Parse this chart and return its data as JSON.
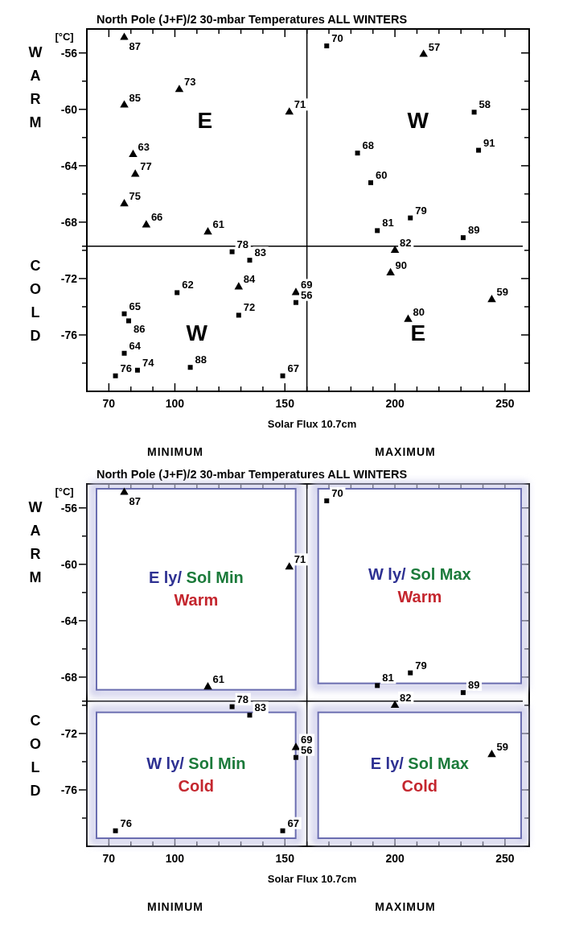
{
  "chart_data": [
    {
      "type": "scatter",
      "title": "North Pole (J+F)/2 30-mbar Temperatures ALL WINTERS",
      "xlabel": "Solar Flux 10.7cm",
      "ylabel": "[°C]",
      "xlim": [
        60,
        261
      ],
      "ylim": [
        -80,
        -54.3
      ],
      "xticks": [
        70,
        {
          "value": 80,
          "label": null
        },
        {
          "value": 90,
          "label": null
        },
        100,
        {
          "value": 110,
          "label": null
        },
        {
          "value": 120,
          "label": null
        },
        {
          "value": 130,
          "label": null
        },
        {
          "value": 140,
          "label": null
        },
        150,
        {
          "value": 160,
          "label": null
        },
        {
          "value": 170,
          "label": null
        },
        {
          "value": 180,
          "label": null
        },
        {
          "value": 190,
          "label": null
        },
        200,
        {
          "value": 210,
          "label": null
        },
        {
          "value": 220,
          "label": null
        },
        {
          "value": 230,
          "label": null
        },
        {
          "value": 240,
          "label": null
        },
        250
      ],
      "yticks": [
        {
          "value": -78,
          "label": null
        },
        -76,
        {
          "value": -74,
          "label": null
        },
        -72,
        {
          "value": -70,
          "label": null
        },
        -68,
        {
          "value": -66,
          "label": null
        },
        -64,
        {
          "value": -62,
          "label": null
        },
        -60,
        {
          "value": -58,
          "label": null
        },
        -56
      ],
      "ref_lines": [
        {
          "axis": "y",
          "value": -69.7
        },
        {
          "axis": "x",
          "value": 160
        }
      ],
      "series": [
        {
          "color": "#000000",
          "marker": "triangle",
          "x": [
            77,
            102,
            77,
            152,
            81,
            82,
            77,
            87,
            115,
            213,
            200,
            198,
            155,
            244,
            206,
            129
          ],
          "values": [
            -54.9,
            -58.6,
            -59.7,
            -60.2,
            -63.2,
            -64.6,
            -66.7,
            -68.2,
            -68.7,
            -56.1,
            -70.0,
            -71.6,
            -73.0,
            -73.5,
            -74.9,
            -72.6
          ]
        },
        {
          "color": "#000000",
          "marker": "square",
          "x": [
            169,
            236,
            238,
            183,
            189,
            207,
            192,
            231,
            126,
            134,
            101,
            129,
            77,
            79,
            77,
            73,
            83,
            107,
            155,
            149
          ],
          "values": [
            -55.5,
            -60.2,
            -62.9,
            -63.1,
            -65.2,
            -67.7,
            -68.6,
            -69.1,
            -70.1,
            -70.7,
            -73.0,
            -74.6,
            -74.5,
            -75.0,
            -77.3,
            -78.9,
            -78.5,
            -78.3,
            -73.7,
            -78.9
          ]
        }
      ],
      "annotations": [
        "WARM",
        "COLD",
        "MINIMUM",
        "MAXIMUM",
        "E",
        "W",
        "W",
        "E",
        {
          "text": "87",
          "x": 77,
          "y": -54.9
        },
        {
          "text": "73",
          "x": 102,
          "y": -58.6
        },
        {
          "text": "85",
          "x": 77,
          "y": -59.7
        },
        {
          "text": "71",
          "x": 152,
          "y": -60.2
        },
        {
          "text": "63",
          "x": 81,
          "y": -63.2
        },
        {
          "text": "77",
          "x": 82,
          "y": -64.6
        },
        {
          "text": "75",
          "x": 77,
          "y": -66.7
        },
        {
          "text": "66",
          "x": 87,
          "y": -68.2
        },
        {
          "text": "61",
          "x": 115,
          "y": -68.7
        },
        {
          "text": "57",
          "x": 213,
          "y": -56.1
        },
        {
          "text": "82",
          "x": 200,
          "y": -70.0
        },
        {
          "text": "90",
          "x": 198,
          "y": -71.6
        },
        {
          "text": "69",
          "x": 155,
          "y": -73.0
        },
        {
          "text": "59",
          "x": 244,
          "y": -73.5
        },
        {
          "text": "80",
          "x": 206,
          "y": -74.9
        },
        {
          "text": "84",
          "x": 129,
          "y": -72.6
        },
        {
          "text": "70",
          "x": 169,
          "y": -55.5
        },
        {
          "text": "58",
          "x": 236,
          "y": -60.2
        },
        {
          "text": "91",
          "x": 238,
          "y": -62.9
        },
        {
          "text": "68",
          "x": 183,
          "y": -63.1
        },
        {
          "text": "60",
          "x": 189,
          "y": -65.2
        },
        {
          "text": "79",
          "x": 207,
          "y": -67.7
        },
        {
          "text": "81",
          "x": 192,
          "y": -68.6
        },
        {
          "text": "89",
          "x": 231,
          "y": -69.1
        },
        {
          "text": "78",
          "x": 126,
          "y": -70.1
        },
        {
          "text": "83",
          "x": 134,
          "y": -70.7
        },
        {
          "text": "62",
          "x": 101,
          "y": -73.0
        },
        {
          "text": "72",
          "x": 129,
          "y": -74.6
        },
        {
          "text": "65",
          "x": 77,
          "y": -74.5
        },
        {
          "text": "86",
          "x": 79,
          "y": -75.0
        },
        {
          "text": "64",
          "x": 77,
          "y": -77.3
        },
        {
          "text": "76",
          "x": 73,
          "y": -78.9
        },
        {
          "text": "74",
          "x": 83,
          "y": -78.5
        },
        {
          "text": "88",
          "x": 107,
          "y": -78.3
        },
        {
          "text": "56",
          "x": 155,
          "y": -73.7
        },
        {
          "text": "67",
          "x": 149,
          "y": -78.9
        }
      ]
    },
    {
      "type": "scatter",
      "title": "North Pole (J+F)/2 30-mbar Temperatures ALL WINTERS",
      "xlabel": "Solar Flux 10.7cm",
      "ylabel": "[°C]",
      "xlim": [
        60,
        261
      ],
      "ylim": [
        -80,
        -54.3
      ],
      "xticks": [
        70,
        {
          "value": 80,
          "label": null
        },
        {
          "value": 90,
          "label": null
        },
        100,
        {
          "value": 110,
          "label": null
        },
        {
          "value": 120,
          "label": null
        },
        {
          "value": 130,
          "label": null
        },
        {
          "value": 140,
          "label": null
        },
        150,
        {
          "value": 160,
          "label": null
        },
        {
          "value": 170,
          "label": null
        },
        {
          "value": 180,
          "label": null
        },
        {
          "value": 190,
          "label": null
        },
        200,
        {
          "value": 210,
          "label": null
        },
        {
          "value": 220,
          "label": null
        },
        {
          "value": 230,
          "label": null
        },
        {
          "value": 240,
          "label": null
        },
        250
      ],
      "yticks": [
        {
          "value": -78,
          "label": null
        },
        -76,
        {
          "value": -74,
          "label": null
        },
        -72,
        {
          "value": -70,
          "label": null
        },
        -68,
        {
          "value": -66,
          "label": null
        },
        -64,
        {
          "value": -62,
          "label": null
        },
        -60,
        {
          "value": -58,
          "label": null
        },
        -56
      ],
      "ref_lines": [
        {
          "axis": "y",
          "value": -69.7
        },
        {
          "axis": "x",
          "value": 160
        }
      ],
      "series": [
        {
          "color": "#000000",
          "marker": "triangle",
          "x": [
            77,
            152,
            115,
            200,
            155,
            244
          ],
          "values": [
            -54.9,
            -60.2,
            -68.7,
            -70.0,
            -73.0,
            -73.5
          ]
        },
        {
          "color": "#000000",
          "marker": "square",
          "x": [
            169,
            207,
            192,
            231,
            126,
            134,
            73,
            155,
            149
          ],
          "values": [
            -55.5,
            -67.7,
            -68.6,
            -69.1,
            -70.1,
            -70.7,
            -78.9,
            -73.7,
            -78.9
          ]
        }
      ],
      "annotations": [
        "WARM",
        "COLD",
        "MINIMUM",
        "MAXIMUM",
        "E ly/",
        "Sol Min",
        "Warm",
        "W ly/",
        "Sol Max",
        "Warm",
        "W ly/",
        "Sol Min",
        "Cold",
        "E ly/",
        "Sol Max",
        "Cold",
        {
          "text": "87",
          "x": 77,
          "y": -54.9
        },
        {
          "text": "71",
          "x": 152,
          "y": -60.2
        },
        {
          "text": "61",
          "x": 115,
          "y": -68.7
        },
        {
          "text": "82",
          "x": 200,
          "y": -70.0
        },
        {
          "text": "69",
          "x": 155,
          "y": -73.0
        },
        {
          "text": "59",
          "x": 244,
          "y": -73.5
        },
        {
          "text": "70",
          "x": 169,
          "y": -55.5
        },
        {
          "text": "79",
          "x": 207,
          "y": -67.7
        },
        {
          "text": "81",
          "x": 192,
          "y": -68.6
        },
        {
          "text": "89",
          "x": 231,
          "y": -69.1
        },
        {
          "text": "78",
          "x": 126,
          "y": -70.1
        },
        {
          "text": "83",
          "x": 134,
          "y": -70.7
        },
        {
          "text": "76",
          "x": 73,
          "y": -78.9
        },
        {
          "text": "56",
          "x": 155,
          "y": -73.7
        },
        {
          "text": "67",
          "x": 149,
          "y": -78.9
        }
      ]
    }
  ]
}
